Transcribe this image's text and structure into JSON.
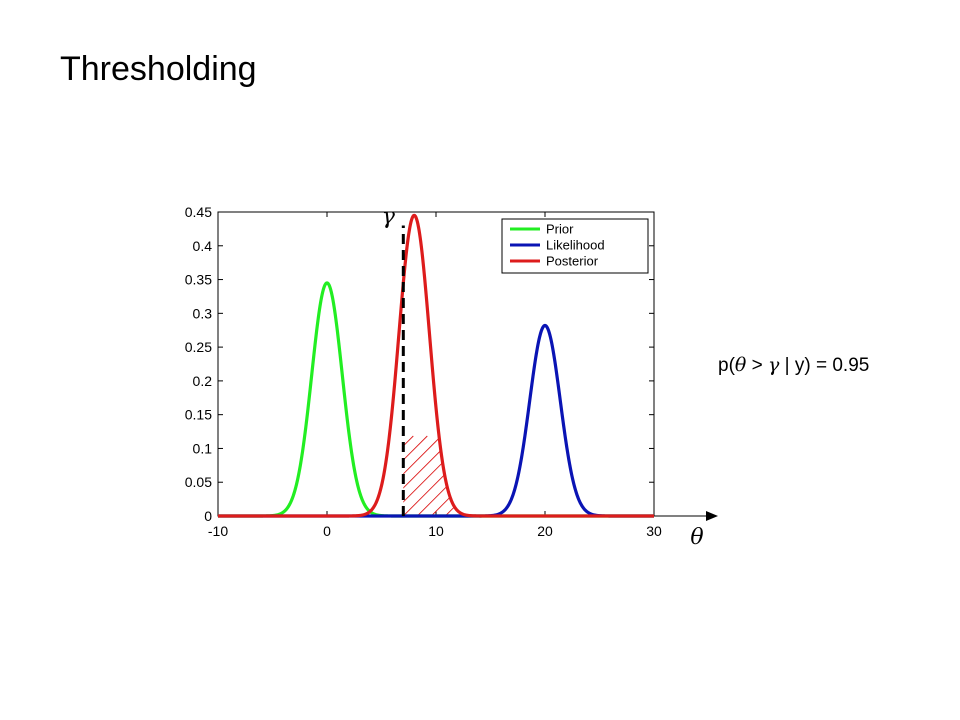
{
  "slide": {
    "title": "Thresholding",
    "formula": {
      "prefix": "p(",
      "theta": "θ",
      "gt": ">",
      "gamma": "γ",
      "suffix": "| y) = 0.95"
    }
  },
  "chart_data": {
    "type": "line",
    "title": "",
    "xlabel": "θ",
    "ylabel": "",
    "xlim": [
      -10,
      30
    ],
    "ylim": [
      0,
      0.45
    ],
    "xticks": [
      -10,
      0,
      10,
      20,
      30
    ],
    "yticks": [
      0,
      0.05,
      0.1,
      0.15,
      0.2,
      0.25,
      0.3,
      0.35,
      0.4,
      0.45
    ],
    "series": [
      {
        "name": "Prior",
        "color": "#22ee22",
        "mean": 0,
        "peak": 0.345
      },
      {
        "name": "Likelihood",
        "color": "#0a14b4",
        "mean": 20,
        "peak": 0.282
      },
      {
        "name": "Posterior",
        "color": "#dd1c1c",
        "mean": 8,
        "peak": 0.445
      }
    ],
    "threshold": {
      "label": "γ",
      "x": 7,
      "shaded_side": "right",
      "shade_color": "#dd1c1c"
    },
    "legend": {
      "placement": "top-right",
      "entries": [
        "Prior",
        "Likelihood",
        "Posterior"
      ]
    },
    "grid": false
  }
}
